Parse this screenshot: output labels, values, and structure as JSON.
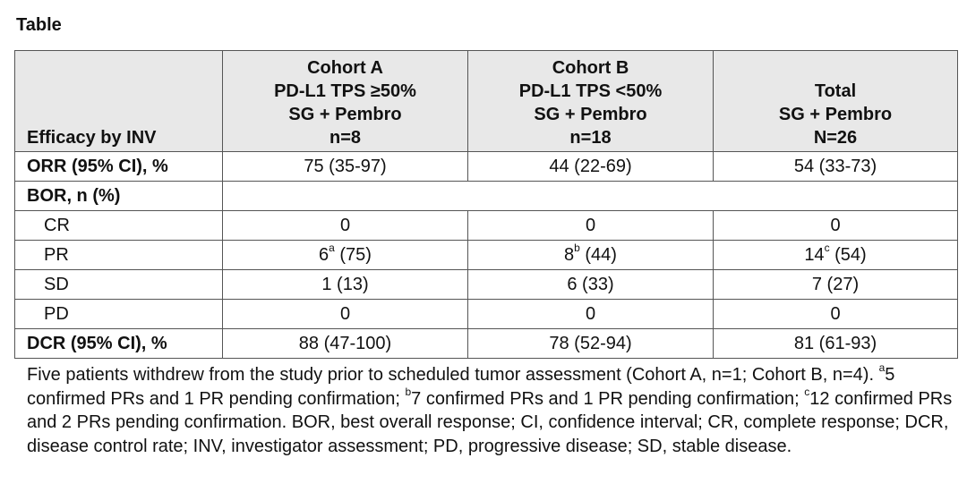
{
  "title": "Table",
  "header": {
    "label": "Efficacy by INV",
    "cols": [
      {
        "line1": "Cohort A",
        "line2": "PD-L1 TPS ≥50%",
        "line3": "SG + Pembro",
        "line4": "n=8"
      },
      {
        "line1": "Cohort B",
        "line2": "PD-L1 TPS <50%",
        "line3": "SG + Pembro",
        "line4": "n=18"
      },
      {
        "line1": "",
        "line2": "Total",
        "line3": "SG + Pembro",
        "line4": "N=26"
      }
    ]
  },
  "rows": {
    "orr": {
      "label": "ORR (95% CI), %",
      "a": "75 (35-97)",
      "b": "44 (22-69)",
      "t": "54 (33-73)"
    },
    "bor": {
      "label": "BOR, n (%)"
    },
    "cr": {
      "label": "CR",
      "a": "0",
      "b": "0",
      "t": "0"
    },
    "pr": {
      "label": "PR",
      "a_main": "6",
      "a_sup": "a",
      "a_rest": " (75)",
      "b_main": "8",
      "b_sup": "b",
      "b_rest": " (44)",
      "t_main": "14",
      "t_sup": "c",
      "t_rest": " (54)"
    },
    "sd": {
      "label": "SD",
      "a": "1 (13)",
      "b": "6 (33)",
      "t": "7 (27)"
    },
    "pd": {
      "label": "PD",
      "a": "0",
      "b": "0",
      "t": "0"
    },
    "dcr": {
      "label": "DCR (95% CI), %",
      "a": "88 (47-100)",
      "b": "78 (52-94)",
      "t": "81 (61-93)"
    }
  },
  "footnote": {
    "part1": "Five patients withdrew from the study prior to scheduled tumor assessment (Cohort A, n=1; Cohort B, n=4). ",
    "sup_a": "a",
    "part2": "5 confirmed PRs and 1 PR pending confirmation; ",
    "sup_b": "b",
    "part3": "7 confirmed PRs and 1 PR pending confirmation; ",
    "sup_c": "c",
    "part4": "12 confirmed PRs and 2 PRs pending confirmation. BOR, best overall response; CI, confidence interval; CR, complete response; DCR, disease control rate; INV, investigator assessment; PD, progressive disease; SD, stable disease."
  }
}
